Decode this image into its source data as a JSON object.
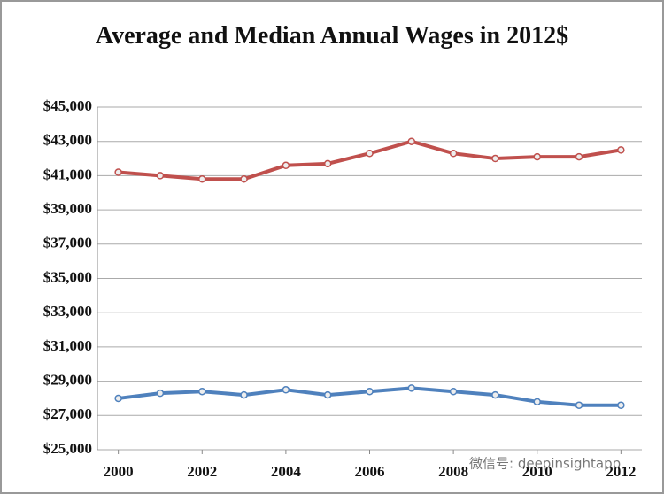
{
  "chart_data": {
    "type": "line",
    "title": "Average and Median Annual Wages in 2012$",
    "x": [
      2000,
      2001,
      2002,
      2003,
      2004,
      2005,
      2006,
      2007,
      2008,
      2009,
      2010,
      2011,
      2012
    ],
    "series": [
      {
        "color": "#c0504d",
        "values": [
          41200,
          41000,
          40800,
          40800,
          41600,
          41700,
          42300,
          43000,
          42300,
          42000,
          42100,
          42100,
          42500
        ]
      },
      {
        "color": "#4f81bd",
        "values": [
          28000,
          28300,
          28400,
          28200,
          28500,
          28200,
          28400,
          28600,
          28400,
          28200,
          27800,
          27600,
          27600
        ]
      }
    ],
    "xlim": [
      1999.5,
      2012.5
    ],
    "xticks": [
      2000,
      2002,
      2004,
      2006,
      2008,
      2010,
      2012
    ],
    "ylim": [
      25000,
      45000
    ],
    "yticks": [
      {
        "value": 25000,
        "label": "$25,000"
      },
      {
        "value": 27000,
        "label": "$27,000"
      },
      {
        "value": 29000,
        "label": "$29,000"
      },
      {
        "value": 31000,
        "label": "$31,000"
      },
      {
        "value": 33000,
        "label": "$33,000"
      },
      {
        "value": 35000,
        "label": "$35,000"
      },
      {
        "value": 37000,
        "label": "$37,000"
      },
      {
        "value": 39000,
        "label": "$39,000"
      },
      {
        "value": 41000,
        "label": "$41,000"
      },
      {
        "value": 43000,
        "label": "$43,000"
      },
      {
        "value": 45000,
        "label": "$45,000"
      }
    ],
    "grid": true,
    "watermark": "微信号: deepinsightapp"
  }
}
